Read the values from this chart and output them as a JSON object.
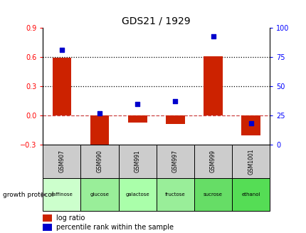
{
  "title": "GDS21 / 1929",
  "categories": [
    "GSM907",
    "GSM990",
    "GSM991",
    "GSM997",
    "GSM999",
    "GSM1001"
  ],
  "protocols": [
    "raffinose",
    "glucose",
    "galactose",
    "fructose",
    "sucrose",
    "ethanol"
  ],
  "log_ratios": [
    0.595,
    -0.34,
    -0.075,
    -0.09,
    0.605,
    -0.205
  ],
  "percentile_ranks": [
    81,
    27,
    35,
    37,
    93,
    18
  ],
  "ylim_left": [
    -0.3,
    0.9
  ],
  "ylim_right": [
    0,
    100
  ],
  "yticks_left": [
    -0.3,
    0.0,
    0.3,
    0.6,
    0.9
  ],
  "yticks_right": [
    0,
    25,
    50,
    75,
    100
  ],
  "hlines": [
    0.3,
    0.6
  ],
  "bar_color": "#cc2200",
  "dot_color": "#0000cc",
  "zero_line_color": "#cc4444",
  "hline_color": "#000000",
  "bg_color": "#ffffff",
  "protocol_colors": [
    "#ccffcc",
    "#99ee99",
    "#aaffaa",
    "#99ee99",
    "#66dd66",
    "#55dd55"
  ],
  "bar_width": 0.5,
  "legend_bar_label": "log ratio",
  "legend_dot_label": "percentile rank within the sample",
  "gray_row_color": "#cccccc",
  "growth_protocol_label": "growth protocol"
}
